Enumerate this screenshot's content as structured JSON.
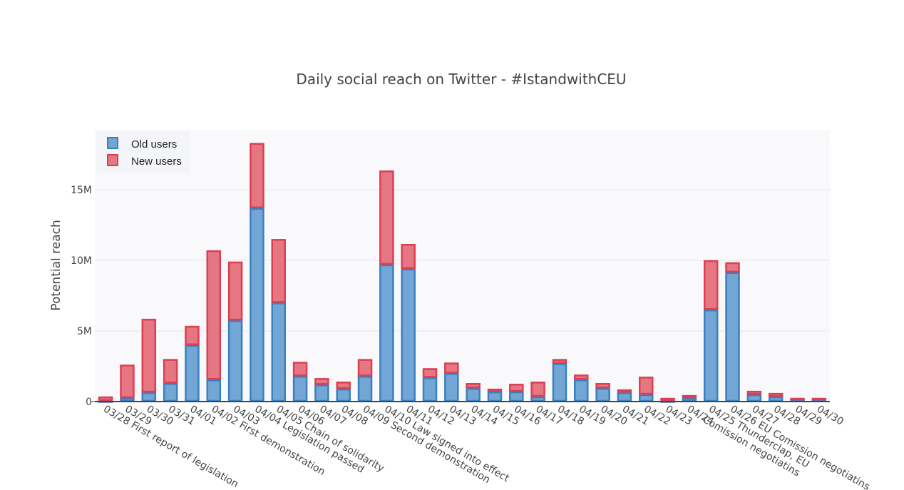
{
  "chart_data": {
    "type": "bar",
    "barmode": "stack",
    "title": "Daily social reach on Twitter  -  #IstandwithCEU",
    "xlabel": "",
    "ylabel": "Potential reach",
    "ylim": [
      0,
      19.3
    ],
    "yunit": "M",
    "yticks": [
      {
        "value": 0,
        "label": "0"
      },
      {
        "value": 5,
        "label": "5M"
      },
      {
        "value": 10,
        "label": "10M"
      },
      {
        "value": 15,
        "label": "15M"
      }
    ],
    "grid": true,
    "legend_position": "top-left",
    "categories": [
      [
        "03/28 First report of legislation"
      ],
      [
        "03/29"
      ],
      [
        "03/30"
      ],
      [
        "03/31"
      ],
      [
        "04/01"
      ],
      [
        "04/02 First demonstration"
      ],
      [
        "04/03"
      ],
      [
        "04/04 Legislation passed"
      ],
      [
        "04/05 Chain of solidarity"
      ],
      [
        "04/06"
      ],
      [
        "04/07"
      ],
      [
        "04/08"
      ],
      [
        "04/09 Second demonstration"
      ],
      [
        "04/10 Law signed into effect"
      ],
      [
        "04/11"
      ],
      [
        "04/12"
      ],
      [
        "04/13"
      ],
      [
        "04/14"
      ],
      [
        "04/15"
      ],
      [
        "04/16"
      ],
      [
        "04/17"
      ],
      [
        "04/18"
      ],
      [
        "04/19"
      ],
      [
        "04/20"
      ],
      [
        "04/21"
      ],
      [
        "04/22"
      ],
      [
        "04/23"
      ],
      [
        "04/24"
      ],
      [
        "04/25 Thunderclap, EU",
        "Comission negotiatins"
      ],
      [
        "04/26 EU Comission negotiatins"
      ],
      [
        "04/27"
      ],
      [
        "04/28"
      ],
      [
        "04/29"
      ],
      [
        "04/30"
      ]
    ],
    "series": [
      {
        "name": "Old users",
        "fill": "#72a6d4",
        "stroke": "#3a80c0",
        "values": [
          0.05,
          0.25,
          0.65,
          1.3,
          4.0,
          1.55,
          5.75,
          13.7,
          7.0,
          1.8,
          1.2,
          0.9,
          1.8,
          9.7,
          9.4,
          1.7,
          2.0,
          0.95,
          0.7,
          0.7,
          0.35,
          2.7,
          1.55,
          0.95,
          0.65,
          0.5,
          0.05,
          0.25,
          6.5,
          9.15,
          0.5,
          0.35,
          0.1,
          0.1
        ]
      },
      {
        "name": "New users",
        "fill": "#e57682",
        "stroke": "#dc3f52",
        "values": [
          0.3,
          2.35,
          5.2,
          1.7,
          1.35,
          9.15,
          4.15,
          4.6,
          4.5,
          1.0,
          0.45,
          0.5,
          1.2,
          6.65,
          1.75,
          0.65,
          0.75,
          0.35,
          0.2,
          0.55,
          1.05,
          0.3,
          0.35,
          0.35,
          0.2,
          1.25,
          0.2,
          0.2,
          3.5,
          0.7,
          0.25,
          0.25,
          0.15,
          0.15
        ]
      }
    ]
  }
}
